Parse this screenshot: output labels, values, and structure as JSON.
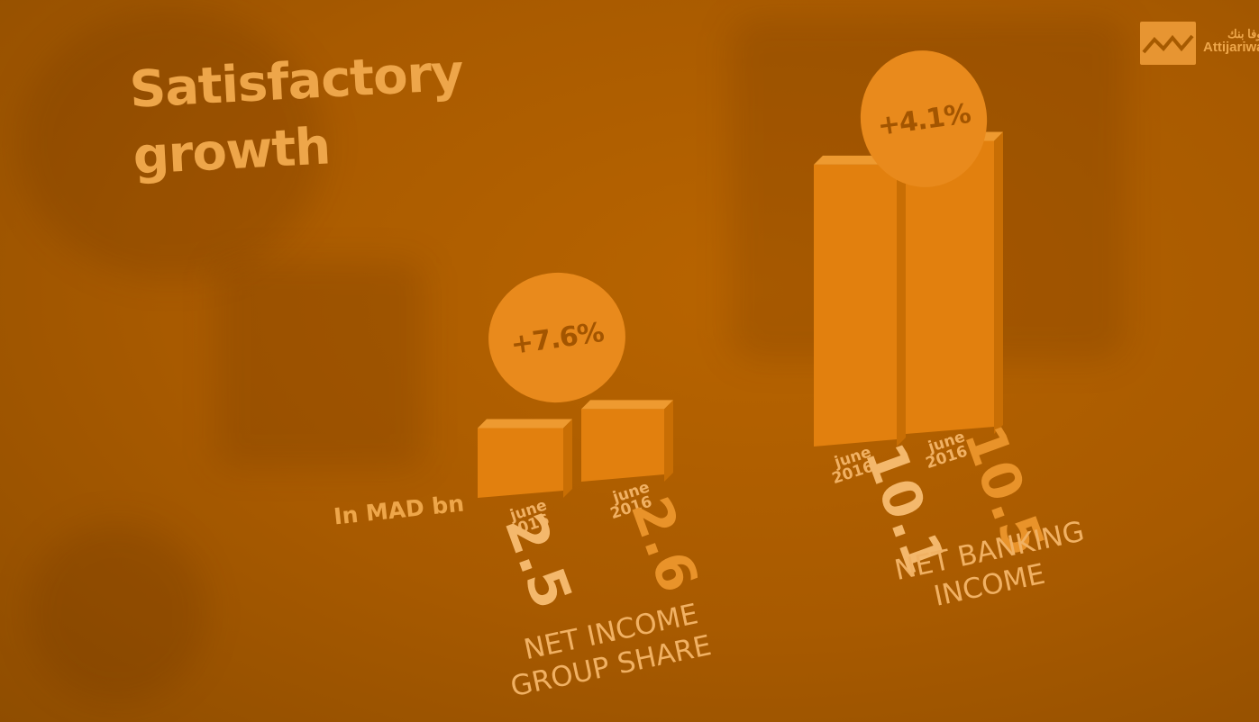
{
  "page": {
    "title": "Satisfactory growth",
    "unit_note": "In MAD bn",
    "logo": {
      "text": "Attijariwa",
      "arabic": "ب وفا بنك",
      "icon": "attijariwafa-bank-logo"
    }
  },
  "colors": {
    "background": "#a85a00",
    "bar": "#e2800e",
    "bubble": "#e98a1c",
    "text": "#eea64a"
  },
  "chart_data": [
    {
      "type": "bar",
      "category": "NET INCOME GROUP SHARE",
      "category_lines": [
        "NET INCOME",
        "GROUP SHARE"
      ],
      "x": [
        [
          "june",
          "2016"
        ],
        [
          "june",
          "2016"
        ]
      ],
      "values": [
        2.5,
        2.6
      ],
      "value_labels": [
        "2.5",
        "2.6"
      ],
      "growth": "+7.6%",
      "unit": "MAD bn"
    },
    {
      "type": "bar",
      "category": "NET BANKING INCOME",
      "category_lines": [
        "NET BANKING",
        "INCOME"
      ],
      "x": [
        [
          "june",
          "2016"
        ],
        [
          "june",
          "2016"
        ]
      ],
      "values": [
        10.1,
        10.5
      ],
      "value_labels": [
        "10.1",
        "10.5"
      ],
      "growth": "+4.1%",
      "unit": "MAD bn"
    }
  ]
}
